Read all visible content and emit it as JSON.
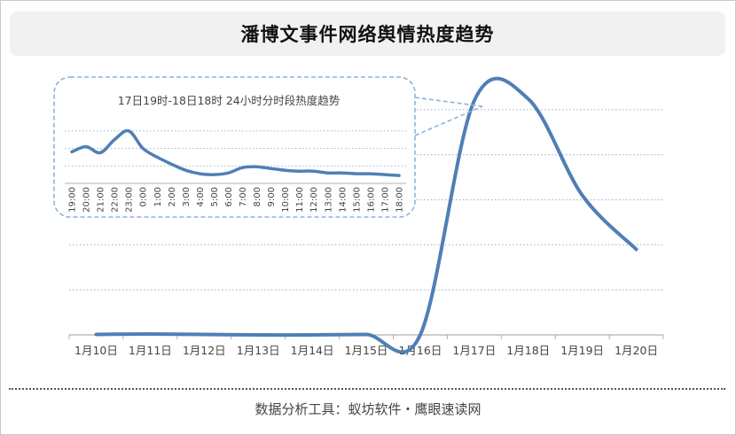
{
  "title": "潘博文事件网络舆情热度趋势",
  "footer": "数据分析工具：蚁坊软件・鹰眼速读网",
  "colors": {
    "line": "#4f7fb5",
    "grid": "#9fb8d8",
    "axis": "#b0b0b0",
    "label": "#444444",
    "inset_border": "#8fb2d6"
  },
  "chart_data": [
    {
      "type": "line",
      "title": "潘博文事件网络舆情热度趋势",
      "categories": [
        "1月10日",
        "1月11日",
        "1月12日",
        "1月13日",
        "1月14日",
        "1月15日",
        "1月16日",
        "1月17日",
        "1月18日",
        "1月19日",
        "1月20日"
      ],
      "values": [
        0.5,
        1,
        0.5,
        0,
        0,
        0.5,
        0,
        260,
        262,
        155,
        95
      ],
      "ylim": [
        0,
        300
      ],
      "grid": true,
      "xlabel": "",
      "ylabel": ""
    },
    {
      "type": "line",
      "title": "17日19时-18日18时  24小时分时段热度趋势",
      "categories": [
        "19:00",
        "20:00",
        "21:00",
        "22:00",
        "23:00",
        "0:00",
        "1:00",
        "2:00",
        "3:00",
        "4:00",
        "5:00",
        "6:00",
        "7:00",
        "8:00",
        "9:00",
        "10:00",
        "11:00",
        "12:00",
        "13:00",
        "14:00",
        "15:00",
        "16:00",
        "17:00",
        "18:00"
      ],
      "values": [
        36,
        42,
        35,
        50,
        60,
        40,
        30,
        22,
        15,
        11,
        10,
        12,
        18,
        19,
        17,
        15,
        14,
        14,
        12,
        12,
        11,
        11,
        10,
        9
      ],
      "ylim": [
        0,
        80
      ],
      "grid": true,
      "xlabel": "",
      "ylabel": ""
    }
  ]
}
